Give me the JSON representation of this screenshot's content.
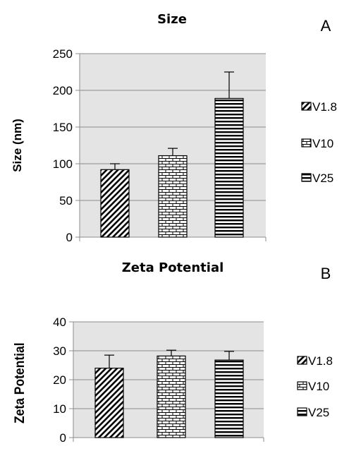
{
  "chart_data": [
    {
      "type": "bar",
      "title": "Size",
      "panel_label": "A",
      "ylabel": "Size (nm)",
      "xlabel": "",
      "ylim": [
        0,
        250
      ],
      "yticks": [
        "0",
        "50",
        "100",
        "150",
        "200",
        "250"
      ],
      "grid": true,
      "legend_position": "right",
      "categories": [
        "V1.8",
        "V10",
        "V25"
      ],
      "values": [
        92,
        111,
        189
      ],
      "errors": [
        8,
        10,
        36
      ],
      "patterns": [
        "diagonal",
        "brick",
        "horizontal"
      ],
      "colors": {
        "plot_bg": "#e4e4e4",
        "bar_ink": "#000000",
        "axis": "#8c8c8c",
        "grid": "#8c8c8c"
      }
    },
    {
      "type": "bar",
      "title": "Zeta Potential",
      "panel_label": "B",
      "ylabel": "Zeta Potential",
      "xlabel": "",
      "ylim": [
        0,
        40
      ],
      "yticks": [
        "0",
        "10",
        "20",
        "30",
        "40"
      ],
      "grid": true,
      "legend_position": "right",
      "categories": [
        "V1.8",
        "V10",
        "V25"
      ],
      "values": [
        24,
        28.2,
        26.8
      ],
      "errors": [
        4.5,
        2,
        3
      ],
      "patterns": [
        "diagonal",
        "brick",
        "horizontal"
      ],
      "colors": {
        "plot_bg": "#e4e4e4",
        "bar_ink": "#000000",
        "axis": "#8c8c8c",
        "grid": "#8c8c8c"
      }
    }
  ]
}
